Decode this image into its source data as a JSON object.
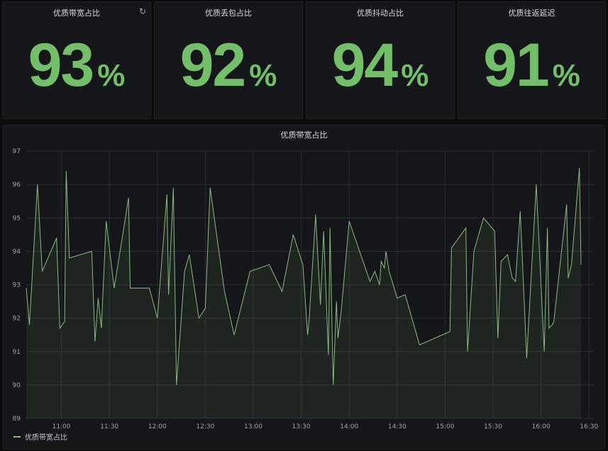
{
  "stats": [
    {
      "title": "优质带宽占比",
      "value": "93",
      "unit": "%"
    },
    {
      "title": "优质丢包占比",
      "value": "92",
      "unit": "%"
    },
    {
      "title": "优质抖动占比",
      "value": "94",
      "unit": "%"
    },
    {
      "title": "优质往返延迟",
      "value": "91",
      "unit": "%"
    }
  ],
  "refresh_icon": "refresh-icon",
  "graph": {
    "legend_label": "优质带宽占比"
  },
  "colors": {
    "stat_green": "#73bf69",
    "line": "#8ab97f",
    "panel_bg": "#141619",
    "page_bg": "#0b0c0e"
  },
  "chart_data": {
    "type": "area",
    "title": "优质带宽占比",
    "xlabel": "",
    "ylabel": "",
    "ylim": [
      89,
      97
    ],
    "xlim": [
      "10:38",
      "16:33"
    ],
    "yticks": [
      "89",
      "90",
      "91",
      "92",
      "93",
      "94",
      "95",
      "96",
      "97"
    ],
    "xticks": [
      "11:00",
      "11:30",
      "12:00",
      "12:30",
      "13:00",
      "13:30",
      "14:00",
      "14:30",
      "15:00",
      "15:30",
      "16:00",
      "16:30"
    ],
    "grid": true,
    "legend": "bottom-left",
    "series": [
      {
        "name": "优质带宽占比",
        "x": [
          "10:38",
          "10:40",
          "10:45",
          "10:48",
          "10:57",
          "10:59",
          "11:02",
          "11:03",
          "11:05",
          "11:19",
          "11:21",
          "11:23",
          "11:25",
          "11:28",
          "11:33",
          "11:39",
          "11:42",
          "11:43",
          "11:46",
          "11:55",
          "12:00",
          "12:06",
          "12:07",
          "12:10",
          "12:12",
          "12:17",
          "12:20",
          "12:26",
          "12:30",
          "12:33",
          "12:42",
          "12:48",
          "12:58",
          "13:10",
          "13:18",
          "13:25",
          "13:31",
          "13:34",
          "13:35",
          "13:39",
          "13:42",
          "13:44",
          "13:47",
          "13:48",
          "13:50",
          "13:52",
          "13:53",
          "13:55",
          "14:00",
          "14:13",
          "14:16",
          "14:19",
          "14:20",
          "14:22",
          "14:23",
          "14:25",
          "14:30",
          "14:35",
          "14:44",
          "15:03",
          "15:04",
          "15:13",
          "15:14",
          "15:18",
          "15:24",
          "15:31",
          "15:33",
          "15:35",
          "15:39",
          "15:42",
          "15:44",
          "15:47",
          "15:51",
          "15:57",
          "16:02",
          "16:04",
          "16:05",
          "16:07",
          "16:08",
          "16:16",
          "16:17",
          "16:19",
          "16:24",
          "16:25"
        ],
        "values": [
          92.9,
          91.8,
          96.0,
          93.4,
          94.4,
          91.7,
          91.9,
          96.4,
          93.8,
          94.0,
          91.3,
          92.6,
          91.7,
          94.9,
          92.9,
          94.7,
          95.6,
          92.9,
          92.9,
          92.9,
          92.0,
          95.7,
          92.7,
          95.9,
          90.0,
          93.4,
          93.9,
          92.0,
          92.3,
          95.9,
          92.8,
          91.5,
          93.4,
          93.6,
          92.8,
          94.5,
          93.6,
          91.5,
          92.0,
          95.1,
          92.4,
          94.6,
          90.9,
          94.7,
          90.0,
          92.5,
          91.4,
          92.2,
          94.9,
          93.1,
          93.4,
          93.0,
          93.7,
          93.5,
          94.0,
          93.4,
          92.6,
          92.7,
          91.2,
          91.6,
          94.1,
          94.7,
          91.0,
          94.0,
          95.0,
          94.6,
          91.4,
          93.7,
          93.9,
          93.2,
          93.1,
          95.2,
          90.8,
          96.0,
          91.0,
          94.7,
          91.7,
          91.8,
          91.9,
          95.4,
          93.2,
          93.6,
          96.5,
          93.6
        ]
      }
    ]
  }
}
